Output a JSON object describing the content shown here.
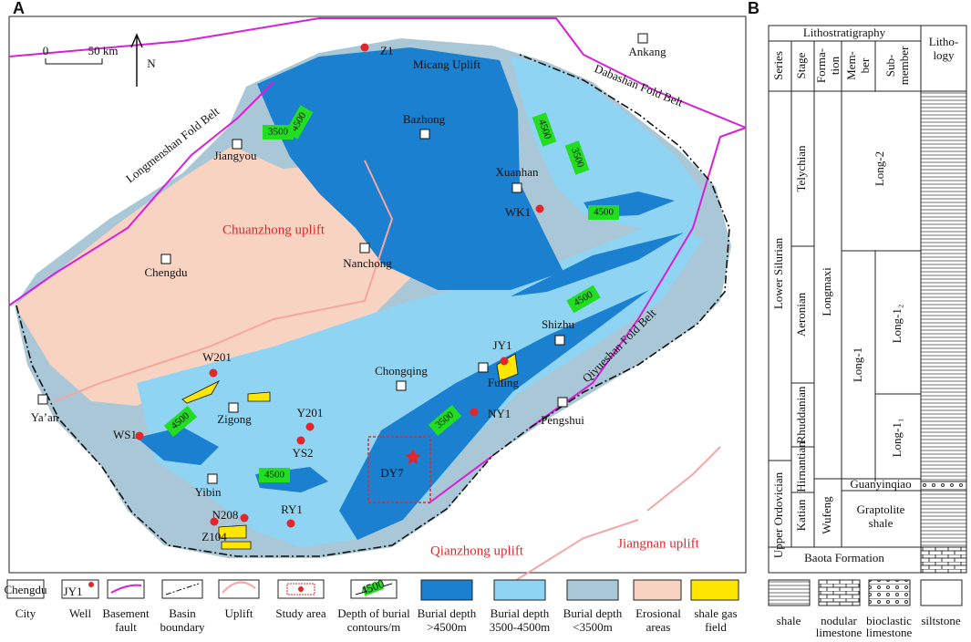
{
  "panel_labels": [
    "A",
    "B"
  ],
  "map": {
    "scale": [
      "0",
      "50 km"
    ],
    "north": "N",
    "cities": [
      "Ankang",
      "Bazhong",
      "Jiangyou",
      "Xuanhan",
      "Chengdu",
      "Nanchong",
      "Shizhu",
      "Chongqing",
      "Fuling",
      "Ya’an",
      "Zigong",
      "Pengshui",
      "Yibin"
    ],
    "wells": [
      "Z1",
      "WK1",
      "JY1",
      "W201",
      "Y201",
      "NY1",
      "WS1",
      "YS2",
      "N208",
      "RY1",
      "Z104"
    ],
    "study_well": "DY7",
    "tectonic_units": [
      "Micang Uplift",
      "Dabashan Fold Belt",
      "Longmenshan Fold Belt",
      "Qiyueshan Fold Belt"
    ],
    "uplifts": [
      "Chuanzhong uplift",
      "Qianzhong uplift",
      "Jiangnan uplift"
    ],
    "contours": [
      "4500",
      "3500",
      "4500",
      "3500",
      "4500",
      "4500",
      "4500",
      "4500",
      "3500"
    ]
  },
  "legend": {
    "city_icon": "Chengdu",
    "well_icon": "JY1",
    "contour_icon": "4500",
    "items": [
      [
        "City"
      ],
      [
        "Well"
      ],
      [
        "Basement",
        "fault"
      ],
      [
        "Basin",
        "boundary"
      ],
      [
        "Uplift"
      ],
      [
        "Study area"
      ],
      [
        "Depth of burial",
        "contours/m"
      ],
      [
        "Burial depth",
        ">4500m"
      ],
      [
        "Burial depth",
        "3500-4500m"
      ],
      [
        "Burial depth",
        "<3500m"
      ],
      [
        "Erosional",
        "areas"
      ],
      [
        "shale gas",
        "field"
      ]
    ]
  },
  "column": {
    "header": "Lithostratigraphy",
    "lithology": [
      "Litho-",
      "logy"
    ],
    "subheaders": [
      [
        "Series"
      ],
      [
        "Stage"
      ],
      [
        "Forma-",
        "tion"
      ],
      [
        "Mem-",
        "ber"
      ],
      [
        "Sub-",
        "member"
      ]
    ],
    "series": [
      "Lower Silurian",
      "Upper Ordovician"
    ],
    "stages": [
      "Telychian",
      "Aeronian",
      "Rhuddanian",
      "Hirnantian",
      "Katian"
    ],
    "formations": [
      "Longmaxi",
      "Wufeng"
    ],
    "members": [
      "Long-2",
      "Long-1",
      "Long-1₂",
      "Long-1₁",
      "Guanyinqiao"
    ],
    "graptolite": [
      "Graptolite",
      "shale"
    ],
    "baota": "Baota Formation"
  },
  "lithology_legend": [
    [
      "shale"
    ],
    [
      "nodular",
      "limestone"
    ],
    [
      "bioclastic",
      "limestone"
    ],
    [
      "siltstone"
    ]
  ]
}
